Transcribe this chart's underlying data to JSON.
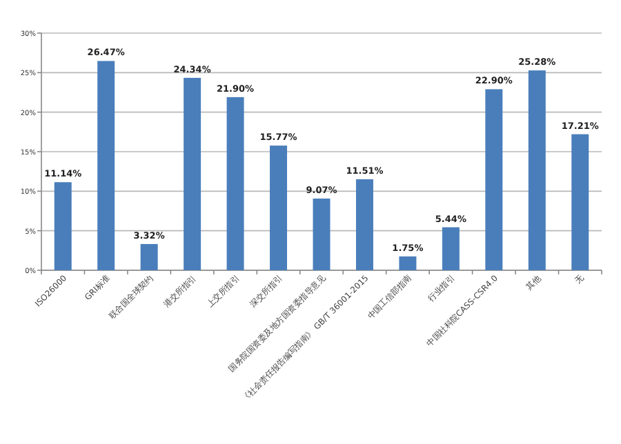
{
  "chart_data": {
    "type": "bar",
    "categories": [
      "ISO26000",
      "GRI标准",
      "联合国全球契约",
      "港交所指引",
      "上交所指引",
      "深交所指引",
      "国务院国资委及地方国资委指导意见",
      "《社会责任报告编写指南》 GB/T 36001-2015",
      "中国工信部指南",
      "行业指引",
      "中国社科院CASS-CSR4.0",
      "其他",
      "无"
    ],
    "values": [
      11.14,
      26.47,
      3.32,
      24.34,
      21.9,
      15.77,
      9.07,
      11.51,
      1.75,
      5.44,
      22.9,
      25.28,
      17.21
    ],
    "value_labels": [
      "11.14%",
      "26.47%",
      "3.32%",
      "24.34%",
      "21.90%",
      "15.77%",
      "9.07%",
      "11.51%",
      "1.75%",
      "5.44%",
      "22.90%",
      "25.28%",
      "17.21%"
    ],
    "color": "#4a7ebb",
    "ylim": [
      0,
      30
    ],
    "yticks": [
      {
        "value": 0,
        "label": "0%"
      },
      {
        "value": 5,
        "label": "5%"
      },
      {
        "value": 10,
        "label": "10%"
      },
      {
        "value": 15,
        "label": "15%"
      },
      {
        "value": 20,
        "label": "20%"
      },
      {
        "value": 25,
        "label": "25%"
      },
      {
        "value": 30,
        "label": "30%"
      }
    ],
    "grid": "y"
  }
}
